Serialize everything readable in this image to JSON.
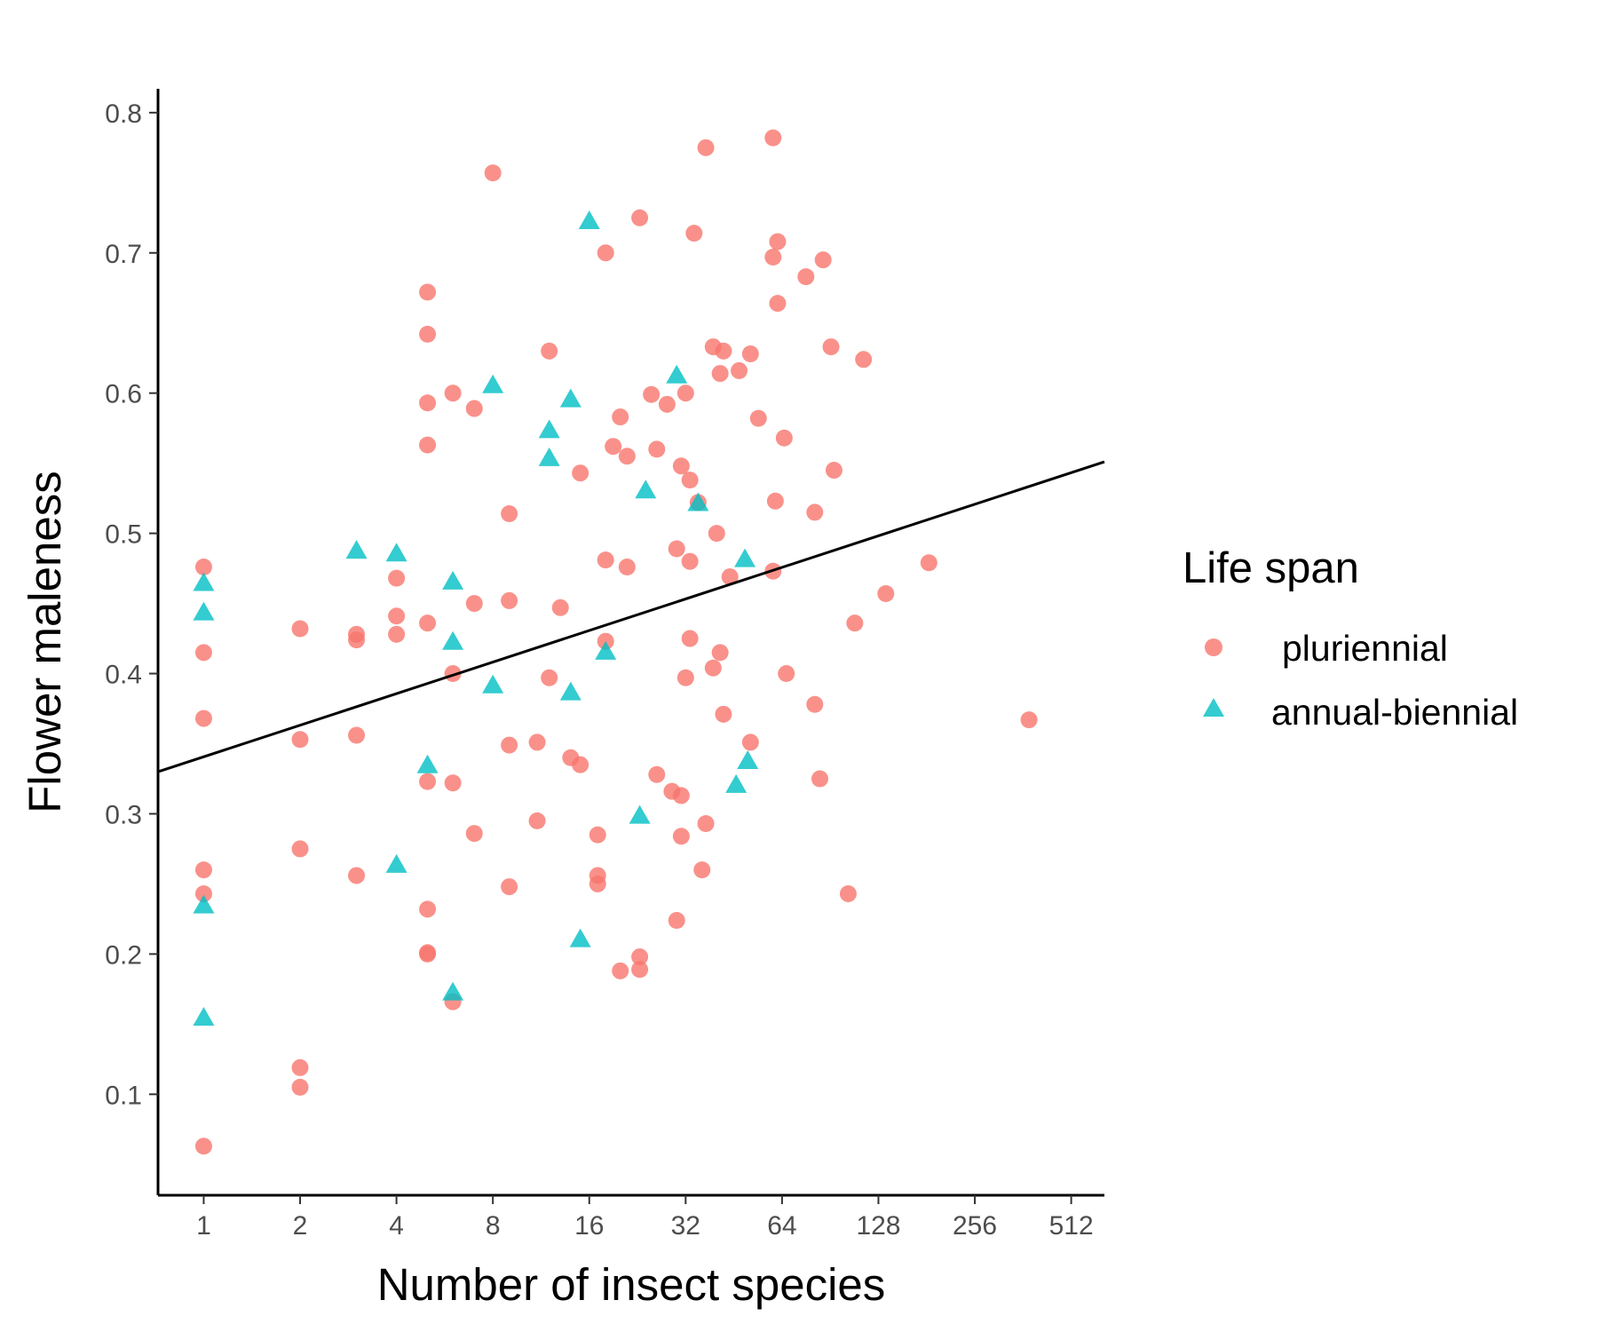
{
  "chart_data": {
    "type": "scatter",
    "x_scale": "log2",
    "xlabel": "Number of insect species",
    "ylabel": "Flower maleness",
    "xlim": [
      0.72,
      650
    ],
    "ylim": [
      0.028,
      0.817
    ],
    "x_ticks": [
      1,
      2,
      4,
      8,
      16,
      32,
      64,
      128,
      256,
      512
    ],
    "x_tick_labels": [
      "1",
      "2",
      "4",
      "8",
      "16",
      "32",
      "64",
      "128",
      "256",
      "512"
    ],
    "y_ticks": [
      0.1,
      0.2,
      0.3,
      0.4,
      0.5,
      0.6,
      0.7,
      0.8
    ],
    "y_tick_labels": [
      "0.1",
      "0.2",
      "0.3",
      "0.4",
      "0.5",
      "0.6",
      "0.7",
      "0.8"
    ],
    "grid": false,
    "legend": {
      "title": "Life span",
      "position": "right"
    },
    "trend_line": {
      "x": [
        0.72,
        650
      ],
      "y": [
        0.33,
        0.551
      ]
    },
    "series": [
      {
        "name": "pluriennial",
        "marker": "circle",
        "color": "#f8766d",
        "points": [
          [
            1,
            0.476
          ],
          [
            1,
            0.415
          ],
          [
            1,
            0.368
          ],
          [
            1,
            0.26
          ],
          [
            1,
            0.243
          ],
          [
            1,
            0.063
          ],
          [
            2,
            0.432
          ],
          [
            2,
            0.353
          ],
          [
            2,
            0.275
          ],
          [
            2,
            0.119
          ],
          [
            2,
            0.105
          ],
          [
            3,
            0.428
          ],
          [
            3,
            0.424
          ],
          [
            3,
            0.356
          ],
          [
            3,
            0.256
          ],
          [
            4,
            0.468
          ],
          [
            4,
            0.441
          ],
          [
            4,
            0.428
          ],
          [
            5,
            0.672
          ],
          [
            5,
            0.642
          ],
          [
            5,
            0.593
          ],
          [
            5,
            0.563
          ],
          [
            5,
            0.436
          ],
          [
            5,
            0.323
          ],
          [
            5,
            0.232
          ],
          [
            5,
            0.201
          ],
          [
            5,
            0.2
          ],
          [
            6,
            0.6
          ],
          [
            6,
            0.4
          ],
          [
            6,
            0.322
          ],
          [
            6,
            0.166
          ],
          [
            7,
            0.589
          ],
          [
            7,
            0.45
          ],
          [
            7,
            0.286
          ],
          [
            8,
            0.757
          ],
          [
            9,
            0.514
          ],
          [
            9,
            0.452
          ],
          [
            9,
            0.349
          ],
          [
            9,
            0.248
          ],
          [
            11,
            0.351
          ],
          [
            11,
            0.295
          ],
          [
            12,
            0.63
          ],
          [
            12,
            0.397
          ],
          [
            13,
            0.447
          ],
          [
            14,
            0.34
          ],
          [
            15,
            0.543
          ],
          [
            15,
            0.335
          ],
          [
            17,
            0.285
          ],
          [
            17,
            0.256
          ],
          [
            17,
            0.25
          ],
          [
            18,
            0.7
          ],
          [
            18,
            0.481
          ],
          [
            18,
            0.423
          ],
          [
            19,
            0.562
          ],
          [
            20,
            0.583
          ],
          [
            20,
            0.188
          ],
          [
            21,
            0.555
          ],
          [
            21,
            0.476
          ],
          [
            23,
            0.725
          ],
          [
            23,
            0.198
          ],
          [
            23,
            0.189
          ],
          [
            25,
            0.599
          ],
          [
            26,
            0.56
          ],
          [
            26,
            0.328
          ],
          [
            28,
            0.592
          ],
          [
            29,
            0.316
          ],
          [
            30,
            0.489
          ],
          [
            30,
            0.224
          ],
          [
            31,
            0.548
          ],
          [
            31,
            0.313
          ],
          [
            31,
            0.284
          ],
          [
            32,
            0.6
          ],
          [
            32,
            0.397
          ],
          [
            33,
            0.538
          ],
          [
            33,
            0.48
          ],
          [
            33,
            0.425
          ],
          [
            34,
            0.714
          ],
          [
            35,
            0.522
          ],
          [
            36,
            0.26
          ],
          [
            37,
            0.775
          ],
          [
            37,
            0.293
          ],
          [
            39,
            0.633
          ],
          [
            39,
            0.404
          ],
          [
            40,
            0.5
          ],
          [
            41,
            0.614
          ],
          [
            41,
            0.415
          ],
          [
            42,
            0.63
          ],
          [
            42,
            0.371
          ],
          [
            44,
            0.469
          ],
          [
            47,
            0.616
          ],
          [
            51,
            0.628
          ],
          [
            51,
            0.351
          ],
          [
            54,
            0.582
          ],
          [
            60,
            0.782
          ],
          [
            60,
            0.697
          ],
          [
            60,
            0.473
          ],
          [
            61,
            0.523
          ],
          [
            62,
            0.708
          ],
          [
            62,
            0.664
          ],
          [
            65,
            0.568
          ],
          [
            66,
            0.4
          ],
          [
            76,
            0.683
          ],
          [
            81,
            0.515
          ],
          [
            81,
            0.378
          ],
          [
            84,
            0.325
          ],
          [
            86,
            0.695
          ],
          [
            91,
            0.633
          ],
          [
            93,
            0.545
          ],
          [
            103,
            0.243
          ],
          [
            108,
            0.436
          ],
          [
            115,
            0.624
          ],
          [
            135,
            0.457
          ],
          [
            184,
            0.479
          ],
          [
            378,
            0.367
          ]
        ]
      },
      {
        "name": "annual-biennial",
        "marker": "triangle",
        "color": "#00bfc4",
        "points": [
          [
            1,
            0.464
          ],
          [
            1,
            0.443
          ],
          [
            1,
            0.234
          ],
          [
            1,
            0.154
          ],
          [
            3,
            0.487
          ],
          [
            4,
            0.485
          ],
          [
            4,
            0.263
          ],
          [
            5,
            0.334
          ],
          [
            6,
            0.465
          ],
          [
            6,
            0.422
          ],
          [
            6,
            0.172
          ],
          [
            8,
            0.605
          ],
          [
            8,
            0.391
          ],
          [
            12,
            0.573
          ],
          [
            12,
            0.553
          ],
          [
            14,
            0.595
          ],
          [
            14,
            0.386
          ],
          [
            15,
            0.21
          ],
          [
            16,
            0.722
          ],
          [
            18,
            0.415
          ],
          [
            23,
            0.298
          ],
          [
            24,
            0.53
          ],
          [
            30,
            0.612
          ],
          [
            35,
            0.521
          ],
          [
            46,
            0.32
          ],
          [
            49,
            0.481
          ],
          [
            50,
            0.337
          ]
        ]
      }
    ]
  }
}
